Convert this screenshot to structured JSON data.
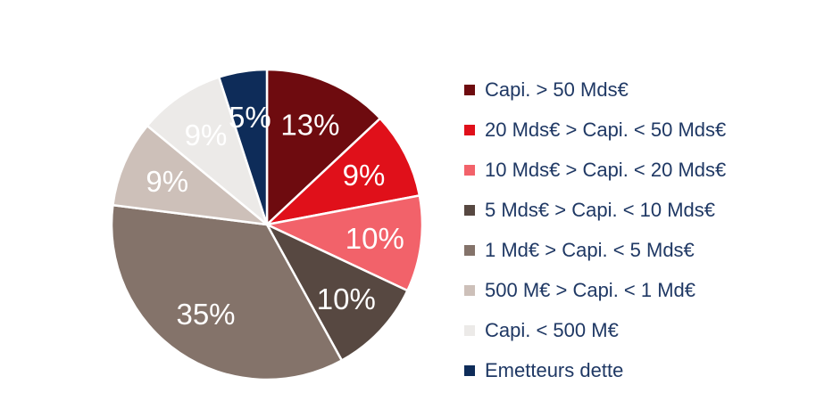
{
  "chart_data": {
    "type": "pie",
    "title": "",
    "slices": [
      {
        "label": "Capi. > 50 Mds€",
        "value": 13,
        "value_label": "13%",
        "color": "#6e0b0f"
      },
      {
        "label": "20 Mds€ > Capi. < 50 Mds€",
        "value": 9,
        "value_label": "9%",
        "color": "#e0101a"
      },
      {
        "label": "10 Mds€ > Capi. < 20 Mds€",
        "value": 10,
        "value_label": "10%",
        "color": "#f2626a"
      },
      {
        "label": "5 Mds€ > Capi. < 10 Mds€",
        "value": 10,
        "value_label": "10%",
        "color": "#574841"
      },
      {
        "label": "1 Md€ > Capi. < 5 Mds€",
        "value": 35,
        "value_label": "35%",
        "color": "#84736a"
      },
      {
        "label": "500 M€ > Capi. < 1 Md€",
        "value": 9,
        "value_label": "9%",
        "color": "#cdc0b9"
      },
      {
        "label": "Capi. < 500 M€",
        "value": 9,
        "value_label": "9%",
        "color": "#eceae8"
      },
      {
        "label": "Emetteurs dette",
        "value": 5,
        "value_label": "5%",
        "color": "#0e2c59"
      }
    ],
    "legend_position": "right",
    "start_angle": "12 o'clock",
    "direction": "clockwise"
  }
}
